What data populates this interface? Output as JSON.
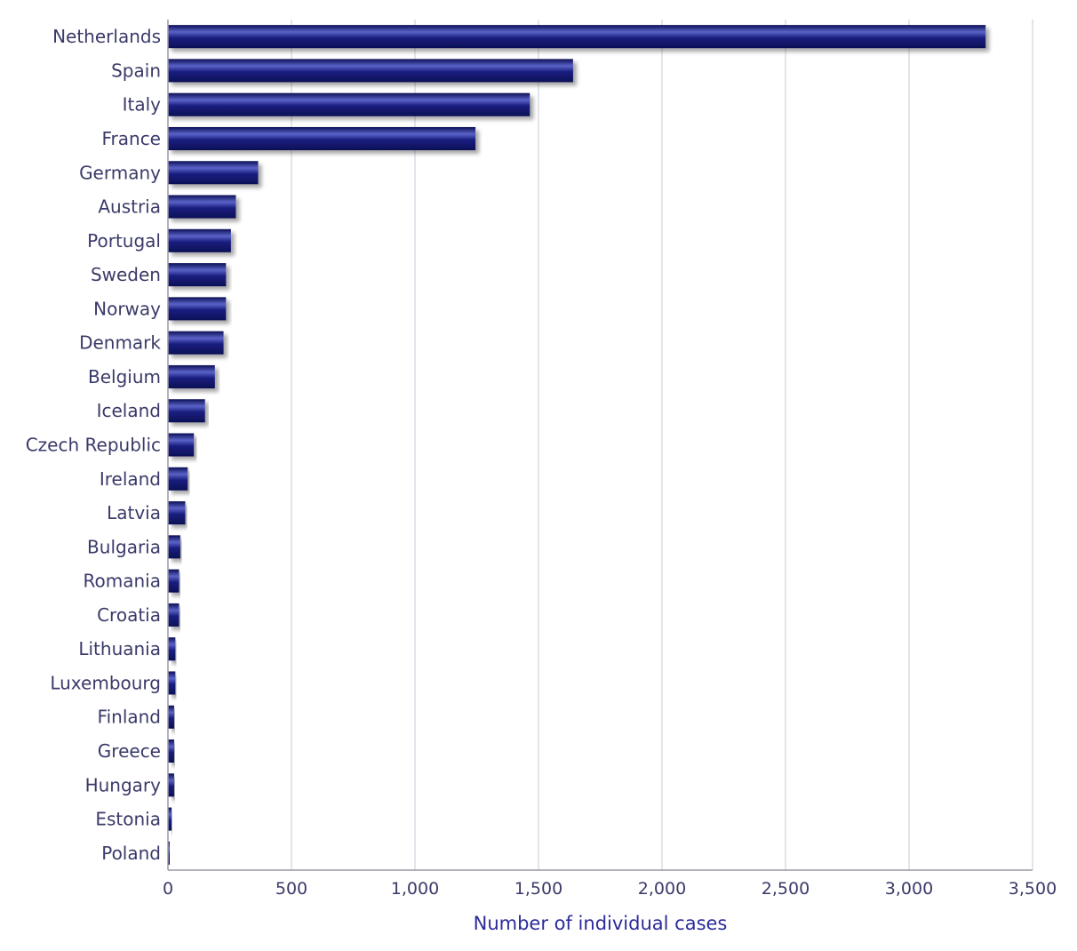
{
  "chart_data": {
    "type": "bar",
    "orientation": "horizontal",
    "categories": [
      "Netherlands",
      "Spain",
      "Italy",
      "France",
      "Germany",
      "Austria",
      "Portugal",
      "Sweden",
      "Norway",
      "Denmark",
      "Belgium",
      "Iceland",
      "Czech Republic",
      "Ireland",
      "Latvia",
      "Bulgaria",
      "Romania",
      "Croatia",
      "Lithuania",
      "Luxembourg",
      "Finland",
      "Greece",
      "Hungary",
      "Estonia",
      "Poland"
    ],
    "values": [
      3310,
      1640,
      1465,
      1245,
      365,
      275,
      255,
      235,
      235,
      225,
      190,
      150,
      105,
      80,
      70,
      50,
      45,
      45,
      30,
      30,
      25,
      25,
      25,
      15,
      5
    ],
    "title": "",
    "xlabel": "Number of individual cases",
    "ylabel": "",
    "xlim": [
      0,
      3500
    ],
    "xticks": [
      0,
      500,
      1000,
      1500,
      2000,
      2500,
      3000,
      3500
    ],
    "xtick_labels": [
      "0",
      "500",
      "1,000",
      "1,500",
      "2,000",
      "2,500",
      "3,000",
      "3,500"
    ],
    "grid": "vertical",
    "colors": {
      "bar": "#1a1f80",
      "bar_highlight": "#5a63c8",
      "bar_dark": "#0c0f55"
    }
  }
}
